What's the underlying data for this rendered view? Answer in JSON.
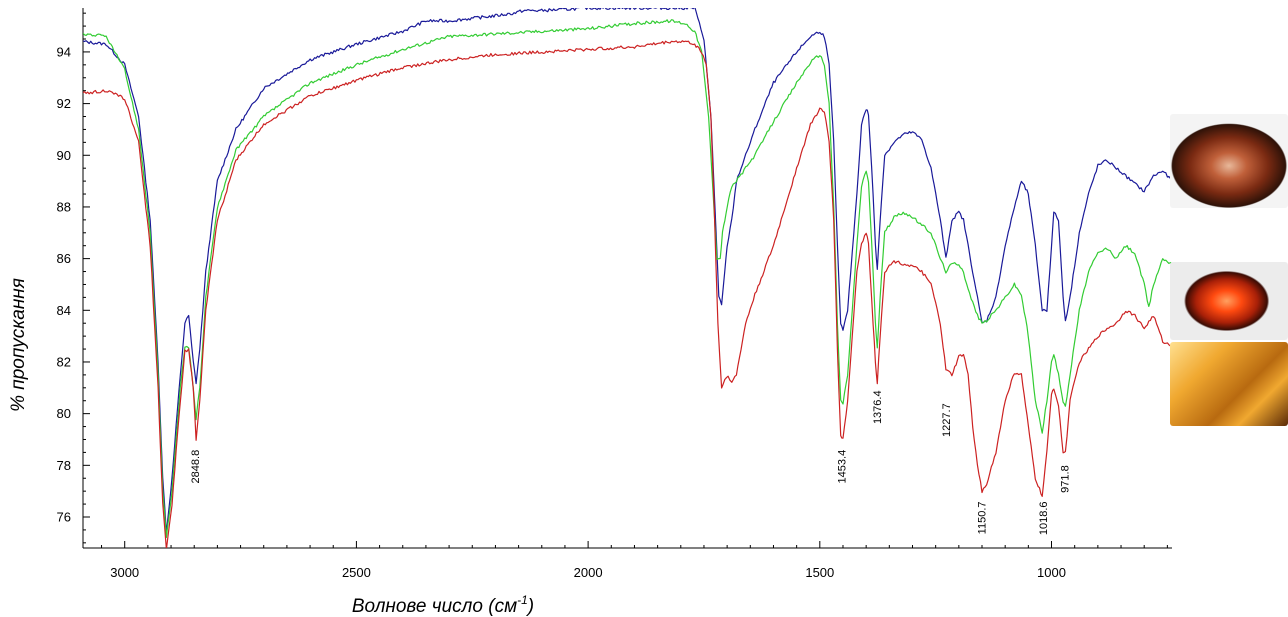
{
  "chart_data": {
    "type": "line",
    "title": "",
    "xlabel": "Волнове число (см",
    "xlabel_sup": "-1",
    "xlabel_end": ")",
    "ylabel": "% пропускання",
    "xlim": [
      3090,
      740
    ],
    "ylim": [
      74.8,
      95.7
    ],
    "x_reversed": true,
    "grid": false,
    "legend": "none",
    "x_ticks": [
      3000,
      2500,
      2000,
      1500,
      1000
    ],
    "y_ticks": [
      76,
      78,
      80,
      82,
      84,
      86,
      88,
      90,
      92,
      94
    ],
    "series": [
      {
        "color": "#1a1a99",
        "x": [
          3090,
          3040,
          3000,
          2970,
          2945,
          2928,
          2918,
          2910,
          2898,
          2880,
          2870,
          2862,
          2852,
          2846,
          2838,
          2825,
          2800,
          2760,
          2700,
          2600,
          2500,
          2400,
          2350,
          2300,
          2200,
          2160,
          2140,
          2100,
          2000,
          1900,
          1820,
          1790,
          1770,
          1750,
          1735,
          1725,
          1718,
          1712,
          1705,
          1700,
          1690,
          1680,
          1660,
          1640,
          1600,
          1550,
          1520,
          1500,
          1490,
          1480,
          1470,
          1462,
          1455,
          1450,
          1440,
          1420,
          1410,
          1400,
          1395,
          1385,
          1380,
          1376,
          1370,
          1360,
          1340,
          1320,
          1300,
          1280,
          1260,
          1240,
          1228,
          1215,
          1200,
          1190,
          1180,
          1160,
          1150,
          1140,
          1120,
          1100,
          1080,
          1065,
          1050,
          1035,
          1020,
          1010,
          1000,
          995,
          985,
          975,
          970,
          960,
          940,
          920,
          900,
          880,
          860,
          840,
          820,
          800,
          780,
          760,
          740
        ],
        "y": [
          94.4,
          94.3,
          93.5,
          91.5,
          87.5,
          82.0,
          77.5,
          75.4,
          77.5,
          81.5,
          83.5,
          83.8,
          82.0,
          81.2,
          82.5,
          85.5,
          89.0,
          91.0,
          92.6,
          93.7,
          94.3,
          94.8,
          95.2,
          95.2,
          95.4,
          95.5,
          95.6,
          95.6,
          95.7,
          95.7,
          95.7,
          95.7,
          95.7,
          94.5,
          91.5,
          87.5,
          84.5,
          84.2,
          85.5,
          86.5,
          87.5,
          89.0,
          90.0,
          91.0,
          92.8,
          94.0,
          94.6,
          94.8,
          94.6,
          93.5,
          90.5,
          86.5,
          83.5,
          83.2,
          84.0,
          88.5,
          91.2,
          91.8,
          91.6,
          88.5,
          86.5,
          85.6,
          87.5,
          90.0,
          90.5,
          90.8,
          90.9,
          90.6,
          89.5,
          87.5,
          86.0,
          87.5,
          87.8,
          87.5,
          86.5,
          84.5,
          83.5,
          83.6,
          84.5,
          86.5,
          88.0,
          89.0,
          88.5,
          86.5,
          84.0,
          84.0,
          86.5,
          87.8,
          87.5,
          84.5,
          83.6,
          84.5,
          87.0,
          88.5,
          89.6,
          89.8,
          89.5,
          89.2,
          88.9,
          88.6,
          89.2,
          89.4,
          89.0
        ]
      },
      {
        "color": "#33cc33",
        "x": [
          3090,
          3040,
          3000,
          2970,
          2945,
          2928,
          2918,
          2910,
          2898,
          2880,
          2870,
          2862,
          2852,
          2846,
          2838,
          2825,
          2800,
          2760,
          2700,
          2600,
          2500,
          2400,
          2300,
          2200,
          2100,
          2000,
          1900,
          1820,
          1790,
          1770,
          1755,
          1740,
          1730,
          1722,
          1715,
          1710,
          1705,
          1700,
          1690,
          1680,
          1660,
          1640,
          1600,
          1550,
          1520,
          1500,
          1490,
          1480,
          1470,
          1462,
          1455,
          1450,
          1440,
          1420,
          1410,
          1400,
          1395,
          1385,
          1380,
          1376,
          1370,
          1360,
          1340,
          1320,
          1300,
          1280,
          1260,
          1240,
          1228,
          1215,
          1200,
          1190,
          1180,
          1160,
          1150,
          1140,
          1120,
          1100,
          1080,
          1065,
          1050,
          1035,
          1020,
          1010,
          1000,
          995,
          985,
          975,
          970,
          960,
          940,
          920,
          900,
          880,
          860,
          840,
          820,
          800,
          790,
          780,
          760,
          740
        ],
        "y": [
          94.7,
          94.6,
          93.3,
          91.0,
          87.0,
          81.5,
          77.0,
          75.2,
          77.0,
          81.0,
          82.6,
          82.6,
          81.0,
          79.8,
          81.0,
          84.5,
          88.0,
          90.2,
          91.5,
          92.8,
          93.5,
          94.1,
          94.6,
          94.7,
          94.8,
          94.9,
          95.1,
          95.2,
          95.1,
          94.8,
          94.0,
          91.5,
          88.5,
          86.0,
          86.0,
          87.0,
          87.5,
          88.0,
          88.8,
          89.0,
          89.5,
          90.0,
          91.3,
          92.8,
          93.6,
          93.9,
          93.5,
          92.0,
          88.0,
          83.5,
          80.5,
          80.4,
          81.5,
          86.5,
          88.8,
          89.4,
          89.0,
          85.5,
          83.5,
          82.5,
          84.5,
          87.0,
          87.6,
          87.8,
          87.6,
          87.3,
          87.0,
          86.0,
          85.5,
          85.8,
          85.8,
          85.5,
          84.8,
          83.8,
          83.5,
          83.6,
          84.0,
          84.5,
          85.0,
          84.6,
          83.0,
          80.5,
          79.3,
          80.5,
          82.0,
          82.3,
          81.5,
          80.5,
          80.3,
          81.5,
          84.0,
          85.5,
          86.2,
          86.4,
          86.0,
          86.5,
          86.2,
          85.0,
          84.1,
          85.0,
          86.0,
          85.8
        ]
      },
      {
        "color": "#cc2222",
        "x": [
          3090,
          3040,
          3000,
          2970,
          2945,
          2928,
          2918,
          2910,
          2898,
          2880,
          2870,
          2862,
          2852,
          2846,
          2838,
          2825,
          2800,
          2760,
          2700,
          2600,
          2500,
          2400,
          2300,
          2200,
          2100,
          2000,
          1900,
          1820,
          1790,
          1770,
          1755,
          1745,
          1735,
          1728,
          1720,
          1712,
          1705,
          1698,
          1690,
          1680,
          1660,
          1640,
          1600,
          1550,
          1520,
          1500,
          1490,
          1480,
          1470,
          1462,
          1455,
          1450,
          1440,
          1420,
          1410,
          1400,
          1395,
          1385,
          1380,
          1376,
          1370,
          1360,
          1340,
          1320,
          1300,
          1280,
          1260,
          1240,
          1228,
          1215,
          1200,
          1190,
          1180,
          1170,
          1160,
          1150,
          1140,
          1120,
          1100,
          1080,
          1065,
          1050,
          1035,
          1020,
          1010,
          1000,
          995,
          985,
          975,
          970,
          960,
          940,
          920,
          900,
          880,
          860,
          840,
          820,
          800,
          780,
          760,
          740
        ],
        "y": [
          92.4,
          92.5,
          92.2,
          90.5,
          86.5,
          81.0,
          76.5,
          74.8,
          76.5,
          80.5,
          82.4,
          82.5,
          81.0,
          79.0,
          80.5,
          84.0,
          87.5,
          89.8,
          91.2,
          92.3,
          92.9,
          93.4,
          93.7,
          93.9,
          94.0,
          94.1,
          94.2,
          94.4,
          94.4,
          94.3,
          94.0,
          93.5,
          91.5,
          88.0,
          83.5,
          81.0,
          81.3,
          81.5,
          81.2,
          81.5,
          83.5,
          84.6,
          86.5,
          89.5,
          91.2,
          91.8,
          91.7,
          90.5,
          87.5,
          82.5,
          79.2,
          79.0,
          80.5,
          85.5,
          86.6,
          87.0,
          86.6,
          83.5,
          82.0,
          81.2,
          83.0,
          85.5,
          85.9,
          85.8,
          85.7,
          85.5,
          85.0,
          83.5,
          81.7,
          81.5,
          82.2,
          82.3,
          81.5,
          79.5,
          78.0,
          77.0,
          77.3,
          78.5,
          80.5,
          81.6,
          81.5,
          79.5,
          77.5,
          76.8,
          78.5,
          80.8,
          81.0,
          80.3,
          78.5,
          78.5,
          80.5,
          82.0,
          82.5,
          83.0,
          83.3,
          83.5,
          84.0,
          83.8,
          83.3,
          83.8,
          82.8,
          82.6
        ]
      }
    ],
    "annotations": [
      {
        "text": "2848.8",
        "x": 2848.8,
        "y": 78.6
      },
      {
        "text": "1453.4",
        "x": 1453.4,
        "y": 78.6
      },
      {
        "text": "1376.4",
        "x": 1376.4,
        "y": 80.9
      },
      {
        "text": "1227.7",
        "x": 1227.7,
        "y": 80.4
      },
      {
        "text": "1150.7",
        "x": 1150.7,
        "y": 76.6
      },
      {
        "text": "1018.6",
        "x": 1018.6,
        "y": 76.6
      },
      {
        "text": "971.8",
        "x": 971.8,
        "y": 78.0
      }
    ]
  },
  "gem_images": [
    {
      "icon": "trillion-cut-brown-amber-gem",
      "colors": [
        "#2e1208",
        "#7a2a12",
        "#c0603a",
        "#e8b89a"
      ]
    },
    {
      "icon": "round-cut-red-orange-gem",
      "colors": [
        "#3a0c04",
        "#a82008",
        "#ff4a10",
        "#ffa060"
      ]
    },
    {
      "icon": "emerald-cut-golden-yellow-gem",
      "colors": [
        "#5a2a06",
        "#b86a10",
        "#f0a830",
        "#ffe090"
      ]
    }
  ]
}
